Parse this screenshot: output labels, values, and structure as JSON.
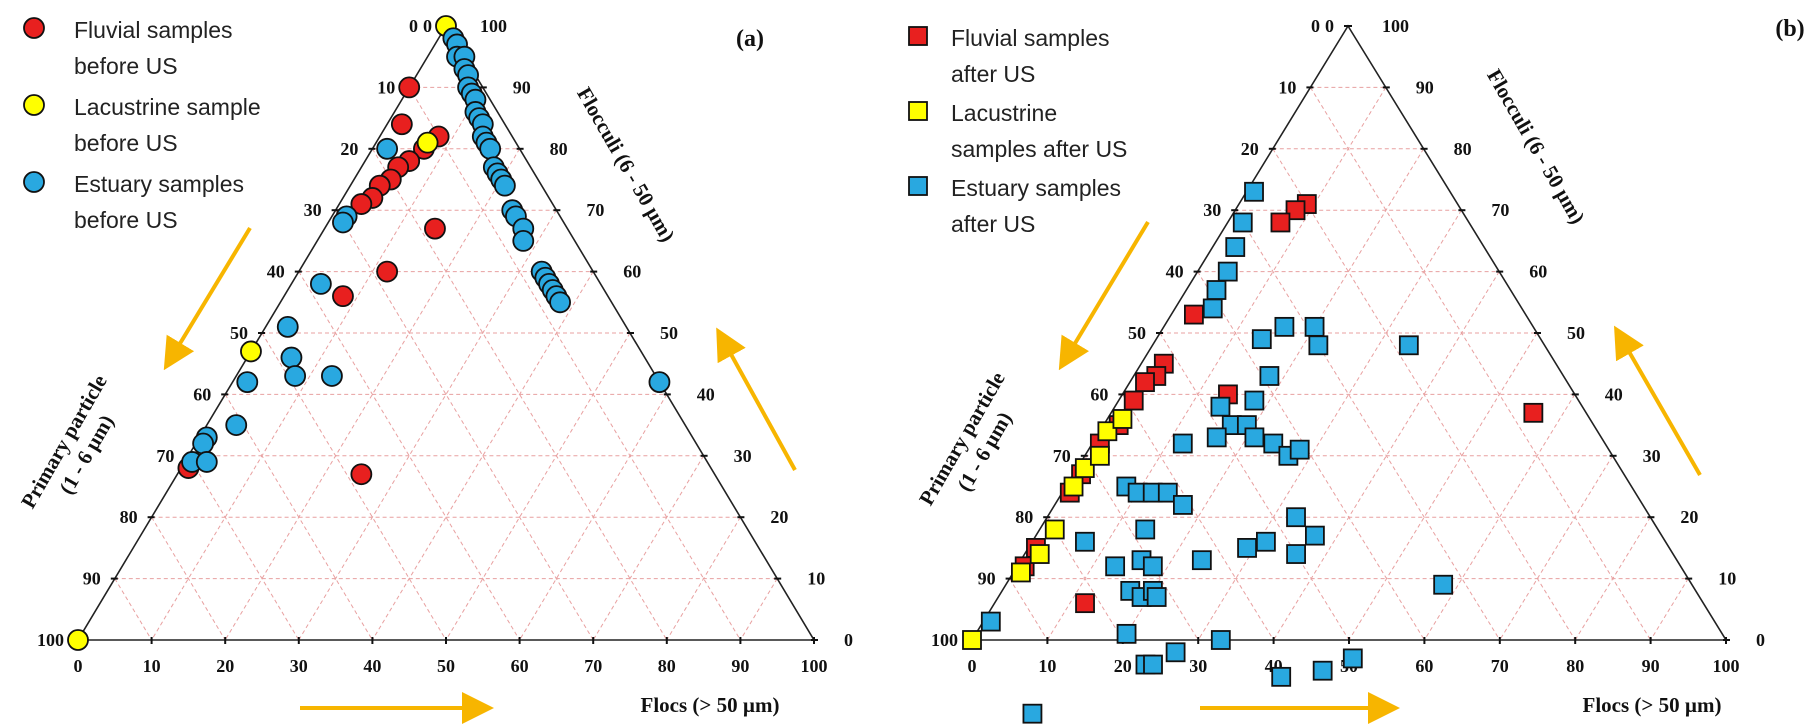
{
  "colors": {
    "fluvial": "#e8201f",
    "lacustrine": "#ffff00",
    "estuary": "#29a8e0",
    "arrow": "#f7b500",
    "grid": "#e8a0a0",
    "frame": "#222222"
  },
  "ticks": {
    "primary": [
      "0",
      "10",
      "20",
      "30",
      "40",
      "50",
      "60",
      "70",
      "80",
      "90",
      "100"
    ],
    "flocculi": [
      "100",
      "90",
      "80",
      "70",
      "60",
      "50",
      "40",
      "30",
      "20",
      "10",
      "0"
    ],
    "flocs": [
      "0",
      "10",
      "20",
      "30",
      "40",
      "50",
      "60",
      "70",
      "80",
      "90",
      "100"
    ]
  },
  "chart_data": [
    {
      "type": "scatter",
      "subtype": "ternary",
      "panel_label": "(a)",
      "axes": {
        "left": "Primary particle (1 - 6 µm)",
        "right": "Flocculi (6 - 50 µm)",
        "bottom": "Flocs (> 50 µm)",
        "range": [
          0,
          100
        ],
        "grid": true
      },
      "legend": {
        "placement": "top-left",
        "entries": [
          {
            "key": "fluvial",
            "lines": [
              "Fluvial samples",
              "before US"
            ]
          },
          {
            "key": "lacustrine",
            "lines": [
              "Lacustrine sample",
              "before US"
            ]
          },
          {
            "key": "estuary",
            "lines": [
              "Estuary samples",
              "before US"
            ]
          }
        ]
      },
      "series": [
        {
          "key": "fluvial",
          "name": "Fluvial samples before US",
          "marker": "circle",
          "points": [
            {
              "flocs": 8,
              "primary": 10
            },
            {
              "flocs": 7,
              "primary": 13
            },
            {
              "flocs": 6,
              "primary": 16
            },
            {
              "flocs": 5,
              "primary": 18
            },
            {
              "flocs": 5,
              "primary": 20
            },
            {
              "flocs": 4,
              "primary": 22
            },
            {
              "flocs": 4,
              "primary": 24
            },
            {
              "flocs": 3,
              "primary": 26
            },
            {
              "flocs": 15,
              "primary": 18
            },
            {
              "flocs": 12,
              "primary": 28
            },
            {
              "flocs": 8,
              "primary": 36
            },
            {
              "flocs": 2,
              "primary": 14
            },
            {
              "flocs": 25,
              "primary": 48
            },
            {
              "flocs": 1,
              "primary": 71
            },
            {
              "flocs": 0,
              "primary": 10
            }
          ]
        },
        {
          "key": "lacustrine",
          "name": "Lacustrine sample before US",
          "marker": "circle",
          "points": [
            {
              "flocs": 0,
              "primary": 0
            },
            {
              "flocs": 7,
              "primary": 12
            },
            {
              "flocs": 0,
              "primary": 53
            },
            {
              "flocs": 0,
              "primary": 100
            }
          ]
        },
        {
          "key": "estuary",
          "name": "Estuary samples before US",
          "marker": "circle",
          "points": [
            {
              "flocs": 2,
              "primary": 0
            },
            {
              "flocs": 3,
              "primary": 0
            },
            {
              "flocs": 4,
              "primary": 1
            },
            {
              "flocs": 5,
              "primary": 0
            },
            {
              "flocs": 6,
              "primary": 1
            },
            {
              "flocs": 7,
              "primary": 1
            },
            {
              "flocs": 8,
              "primary": 2
            },
            {
              "flocs": 9,
              "primary": 2
            },
            {
              "flocs": 10,
              "primary": 2
            },
            {
              "flocs": 11,
              "primary": 3
            },
            {
              "flocs": 12,
              "primary": 3
            },
            {
              "flocs": 13,
              "primary": 3
            },
            {
              "flocs": 14,
              "primary": 4
            },
            {
              "flocs": 15,
              "primary": 4
            },
            {
              "flocs": 16,
              "primary": 4
            },
            {
              "flocs": 18,
              "primary": 5
            },
            {
              "flocs": 19,
              "primary": 5
            },
            {
              "flocs": 20,
              "primary": 5
            },
            {
              "flocs": 21,
              "primary": 5
            },
            {
              "flocs": 24,
              "primary": 6
            },
            {
              "flocs": 25,
              "primary": 6
            },
            {
              "flocs": 27,
              "primary": 6
            },
            {
              "flocs": 28,
              "primary": 7
            },
            {
              "flocs": 33,
              "primary": 7
            },
            {
              "flocs": 34,
              "primary": 7
            },
            {
              "flocs": 35,
              "primary": 7
            },
            {
              "flocs": 36,
              "primary": 7
            },
            {
              "flocs": 37,
              "primary": 7
            },
            {
              "flocs": 38,
              "primary": 7
            },
            {
              "flocs": 58,
              "primary": 0
            },
            {
              "flocs": 2,
              "primary": 18
            },
            {
              "flocs": 2,
              "primary": 29
            },
            {
              "flocs": 2,
              "primary": 30
            },
            {
              "flocs": 4,
              "primary": 38
            },
            {
              "flocs": 6,
              "primary": 48
            },
            {
              "flocs": 2,
              "primary": 56
            },
            {
              "flocs": 1,
              "primary": 66
            },
            {
              "flocs": 1,
              "primary": 67
            },
            {
              "flocs": 1,
              "primary": 70
            },
            {
              "flocs": 13,
              "primary": 44
            },
            {
              "flocs": 8,
              "primary": 49
            },
            {
              "flocs": 3,
              "primary": 46
            },
            {
              "flocs": 4,
              "primary": 61
            },
            {
              "flocs": 3,
              "primary": 68
            }
          ]
        }
      ]
    },
    {
      "type": "scatter",
      "subtype": "ternary",
      "panel_label": "(b)",
      "axes": {
        "left": "Primary particle (1 - 6 µm)",
        "right": "Flocculi (6 - 50 µm)",
        "bottom": "Flocs (> 50 µm)",
        "range": [
          0,
          100
        ],
        "grid": true
      },
      "legend": {
        "placement": "top-left",
        "entries": [
          {
            "key": "fluvial",
            "lines": [
              "Fluvial samples",
              "after US"
            ]
          },
          {
            "key": "lacustrine",
            "lines": [
              "Lacustrine",
              "samples after US"
            ]
          },
          {
            "key": "estuary",
            "lines": [
              "Estuary samples",
              "after US"
            ]
          }
        ]
      },
      "series": [
        {
          "key": "fluvial",
          "name": "Fluvial samples after US",
          "marker": "square",
          "points": [
            {
              "flocs": 9,
              "primary": 20
            },
            {
              "flocs": 8,
              "primary": 22
            },
            {
              "flocs": 7,
              "primary": 25
            },
            {
              "flocs": 3,
              "primary": 44
            },
            {
              "flocs": 14,
              "primary": 46
            },
            {
              "flocs": 3,
              "primary": 52
            },
            {
              "flocs": 3,
              "primary": 54
            },
            {
              "flocs": 2,
              "primary": 56
            },
            {
              "flocs": 2,
              "primary": 59
            },
            {
              "flocs": 2,
              "primary": 63
            },
            {
              "flocs": 1,
              "primary": 67
            },
            {
              "flocs": 1,
              "primary": 72
            },
            {
              "flocs": 1,
              "primary": 75
            },
            {
              "flocs": 1,
              "primary": 84
            },
            {
              "flocs": 1,
              "primary": 87
            },
            {
              "flocs": 12,
              "primary": 82
            },
            {
              "flocs": 56,
              "primary": 7
            }
          ]
        },
        {
          "key": "lacustrine",
          "name": "Lacustrine samples after US",
          "marker": "square",
          "points": [
            {
              "flocs": 0,
              "primary": 100
            },
            {
              "flocs": 1,
              "primary": 88
            },
            {
              "flocs": 2,
              "primary": 84
            },
            {
              "flocs": 2,
              "primary": 80
            },
            {
              "flocs": 1,
              "primary": 74
            },
            {
              "flocs": 1,
              "primary": 71
            },
            {
              "flocs": 2,
              "primary": 68
            },
            {
              "flocs": 1,
              "primary": 65
            },
            {
              "flocs": 2,
              "primary": 62
            }
          ]
        },
        {
          "key": "estuary",
          "name": "Estuary samples after US",
          "marker": "square",
          "points": [
            {
              "flocs": 14,
              "primary": 98
            },
            {
              "flocs": 1,
              "primary": 96
            },
            {
              "flocs": 1,
              "primary": 26
            },
            {
              "flocs": 2,
              "primary": 30
            },
            {
              "flocs": 3,
              "primary": 33
            },
            {
              "flocs": 4,
              "primary": 36
            },
            {
              "flocs": 4,
              "primary": 39
            },
            {
              "flocs": 5,
              "primary": 41
            },
            {
              "flocs": 16,
              "primary": 33
            },
            {
              "flocs": 20,
              "primary": 29
            },
            {
              "flocs": 22,
              "primary": 30
            },
            {
              "flocs": 34,
              "primary": 18
            },
            {
              "flocs": 14,
              "primary": 37
            },
            {
              "flocs": 18,
              "primary": 39
            },
            {
              "flocs": 18,
              "primary": 43
            },
            {
              "flocs": 17,
              "primary": 48
            },
            {
              "flocs": 19,
              "primary": 46
            },
            {
              "flocs": 21,
              "primary": 46
            },
            {
              "flocs": 24,
              "primary": 44
            },
            {
              "flocs": 27,
              "primary": 43
            },
            {
              "flocs": 28,
              "primary": 41
            },
            {
              "flocs": 33,
              "primary": 47
            },
            {
              "flocs": 37,
              "primary": 46
            },
            {
              "flocs": 36,
              "primary": 50
            },
            {
              "flocs": 14,
              "primary": 48
            },
            {
              "flocs": 16,
              "primary": 51
            },
            {
              "flocs": 31,
              "primary": 53
            },
            {
              "flocs": 12,
              "primary": 56
            },
            {
              "flocs": 8,
              "primary": 67
            },
            {
              "flocs": 10,
              "primary": 66
            },
            {
              "flocs": 12,
              "primary": 64
            },
            {
              "flocs": 14,
              "primary": 62
            },
            {
              "flocs": 17,
              "primary": 61
            },
            {
              "flocs": 24,
              "primary": 63
            },
            {
              "flocs": 14,
              "primary": 68
            },
            {
              "flocs": 16,
              "primary": 71
            },
            {
              "flocs": 18,
              "primary": 70
            },
            {
              "flocs": 17,
              "primary": 75
            },
            {
              "flocs": 19,
              "primary": 74
            },
            {
              "flocs": 20,
              "primary": 72
            },
            {
              "flocs": 13,
              "primary": 75
            },
            {
              "flocs": 29,
              "primary": 56
            },
            {
              "flocs": 28,
              "primary": 74
            },
            {
              "flocs": 33,
              "primary": 67
            },
            {
              "flocs": 44,
              "primary": 62
            },
            {
              "flocs": 7,
              "primary": 77
            },
            {
              "flocs": 20,
              "primary": 79
            },
            {
              "flocs": 25,
              "primary": 79
            },
            {
              "flocs": 26,
              "primary": 78
            },
            {
              "flocs": 21,
              "primary": 72
            },
            {
              "flocs": 52,
              "primary": 51
            },
            {
              "flocs": 49,
              "primary": 56
            },
            {
              "flocs": 58,
              "primary": 33
            }
          ]
        }
      ]
    }
  ]
}
